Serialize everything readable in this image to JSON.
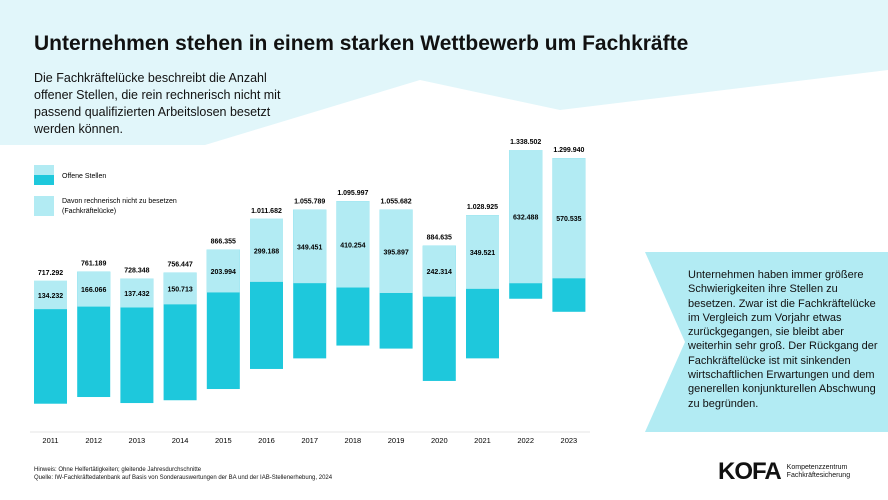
{
  "title": "Unternehmen stehen in einem starken Wettbewerb um Fachkräfte",
  "intro": "Die Fachkräftelücke beschreibt die Anzahl offener Stellen, die rein rechnerisch nicht mit passend qualifizierten Arbeitslosen besetzt werden können.",
  "callout": "Unternehmen haben immer größere Schwierigkeiten ihre Stellen zu besetzen. Zwar ist die Fachkräftelücke im Vergleich zum Vorjahr etwas zurückgegangen, sie bleibt aber weiterhin sehr groß. Der Rückgang der Fachkräftelücke ist mit sinkenden wirtschaftlichen Erwartungen und dem generellen konjunkturellen Abschwung zu begründen.",
  "notes": {
    "hint": "Hinweis: Ohne Helfertätigkeiten; gleitende Jahresdurchschnitte",
    "source": "Quelle: IW-Fachkräftedatenbank auf Basis von Sonderauswertungen der BA und der IAB-Stellenerhebung, 2024"
  },
  "logo": {
    "text": "KOFA",
    "sub1": "Kompetenzzentrum",
    "sub2": "Fachkräftesicherung"
  },
  "colors": {
    "dark": "#1ec8dc",
    "light": "#b2ebf3",
    "banner": "#e1f6fa"
  },
  "chart_data": {
    "type": "bar",
    "stacked": true,
    "categories": [
      "2011",
      "2012",
      "2013",
      "2014",
      "2015",
      "2016",
      "2017",
      "2018",
      "2019",
      "2020",
      "2021",
      "2022",
      "2023"
    ],
    "series": [
      {
        "name": "Offene Stellen",
        "values": [
          717292,
          761189,
          728348,
          756447,
          866355,
          1011682,
          1055789,
          1095997,
          1055682,
          884635,
          1028925,
          1338502,
          1299940
        ],
        "labels": [
          "717.292",
          "761.189",
          "728.348",
          "756.447",
          "866.355",
          "1.011.682",
          "1.055.789",
          "1.095.997",
          "1.055.682",
          "884.635",
          "1.028.925",
          "1.338.502",
          "1.299.940"
        ]
      },
      {
        "name": "Davon rechnerisch nicht zu besetzen (Fachkräftelücke)",
        "values": [
          134232,
          166066,
          137432,
          150713,
          203994,
          299188,
          349451,
          410254,
          395897,
          242314,
          349521,
          632488,
          570535
        ],
        "labels": [
          "134.232",
          "166.066",
          "137.432",
          "150.713",
          "203.994",
          "299.188",
          "349.451",
          "410.254",
          "395.897",
          "242.314",
          "349.521",
          "632.488",
          "570.535"
        ]
      }
    ],
    "legend": {
      "position": "top-left",
      "items": [
        "Offene Stellen",
        "Davon rechnerisch nicht zu besetzen",
        "(Fachkräftelücke)"
      ]
    }
  }
}
